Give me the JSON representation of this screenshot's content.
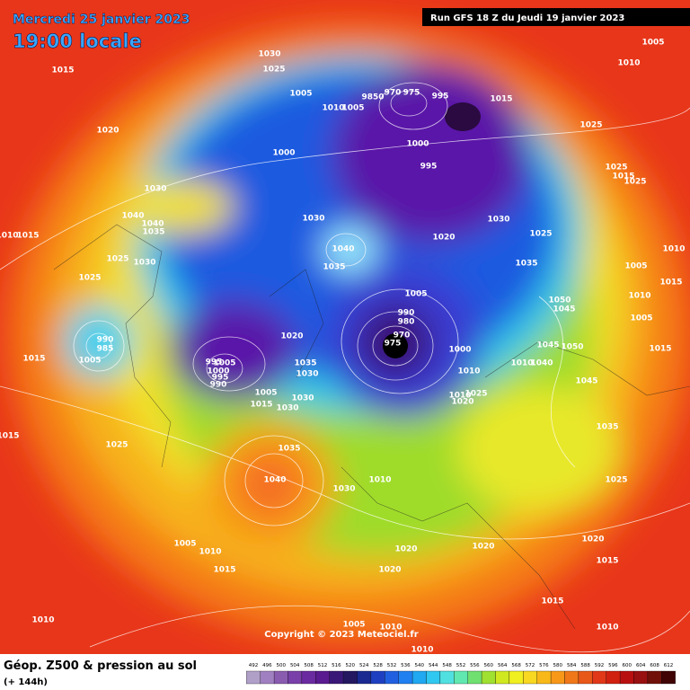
{
  "header": {
    "date": "Mercredi 25 janvier 2023",
    "time": "19:00 locale",
    "run": "Run GFS 18 Z du Jeudi 19 janvier 2023"
  },
  "map": {
    "pressure_labels": [
      1015,
      1030,
      1025,
      1005,
      9850,
      970,
      975,
      995,
      1010,
      1005,
      1015,
      1005,
      1010,
      1020,
      1000,
      1000,
      995,
      1025,
      1025,
      1015,
      1025,
      1030,
      1040,
      1040,
      1035,
      1030,
      1030,
      1020,
      1025,
      1040,
      1010,
      1015,
      1025,
      1030,
      1035,
      1035,
      1010,
      1005,
      1025,
      1005,
      1050,
      1045,
      1010,
      1015,
      990,
      980,
      1020,
      970,
      975,
      990,
      985,
      1000,
      1045,
      1050,
      1005,
      1035,
      1030,
      995,
      1005,
      1000,
      995,
      990,
      1015,
      1005,
      1010,
      1010,
      1040,
      1045,
      1015,
      1005,
      1015,
      1030,
      1030,
      1010,
      1025,
      1020,
      1035,
      1015,
      1025,
      1035,
      1040,
      1010,
      1030,
      1025,
      1005,
      1010,
      1015,
      1020,
      1020,
      1020,
      1020,
      1015,
      1015,
      1010,
      1005,
      1010,
      1010,
      1010
    ],
    "copyright": "Copyright © 2023 Meteociel.fr"
  },
  "footer": {
    "title": "Géop. Z500 & pression au sol",
    "subtitle": "(+ 144h)",
    "scale": [
      492,
      496,
      500,
      504,
      508,
      512,
      516,
      520,
      524,
      528,
      532,
      536,
      540,
      544,
      548,
      552,
      556,
      560,
      564,
      568,
      572,
      576,
      580,
      584,
      588,
      592,
      596,
      600,
      604,
      608,
      612
    ]
  }
}
